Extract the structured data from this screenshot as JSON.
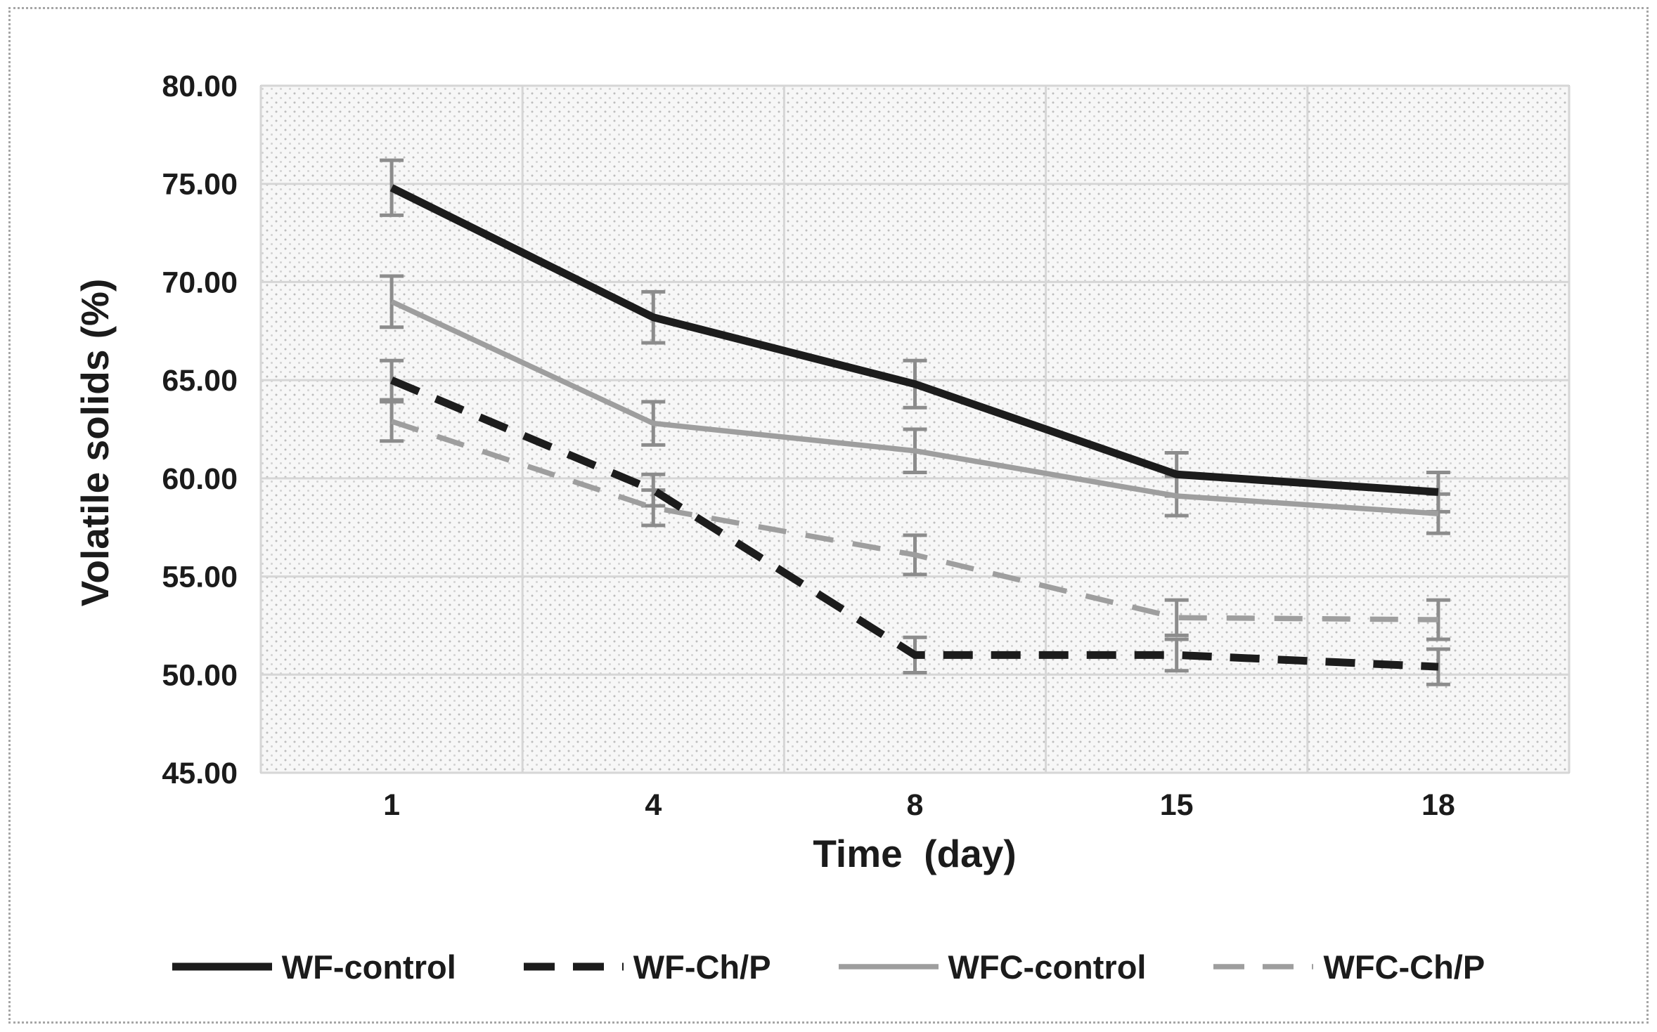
{
  "figure": {
    "frame_color": "#a6a6a6"
  },
  "chart_data": {
    "type": "line",
    "title": "",
    "xlabel": "Time  (day)",
    "ylabel": "Volatile solids (%)",
    "categories": [
      "1",
      "4",
      "8",
      "15",
      "18"
    ],
    "ylim": [
      45,
      80
    ],
    "ytick_step": 5,
    "yticks": [
      "80.00",
      "75.00",
      "70.00",
      "65.00",
      "60.00",
      "55.00",
      "50.00",
      "45.00"
    ],
    "grid": true,
    "legend_position": "bottom",
    "error_bars": true,
    "series": [
      {
        "name": "WF-control",
        "color": "#1c1c1c",
        "style": "solid",
        "values": [
          74.8,
          68.2,
          64.8,
          60.2,
          59.3
        ],
        "errors": [
          1.4,
          1.3,
          1.2,
          1.1,
          1.0
        ]
      },
      {
        "name": "WF-Ch/P",
        "color": "#1c1c1c",
        "style": "dashed",
        "values": [
          65.0,
          59.4,
          51.0,
          51.0,
          50.4
        ],
        "errors": [
          1.0,
          0.8,
          0.9,
          0.8,
          0.9
        ]
      },
      {
        "name": "WFC-control",
        "color": "#9e9e9e",
        "style": "solid",
        "values": [
          69.0,
          62.8,
          61.4,
          59.1,
          58.2
        ],
        "errors": [
          1.3,
          1.1,
          1.1,
          1.0,
          1.0
        ]
      },
      {
        "name": "WFC-Ch/P",
        "color": "#9e9e9e",
        "style": "dashed",
        "values": [
          62.9,
          58.5,
          56.1,
          52.9,
          52.8
        ],
        "errors": [
          1.0,
          0.9,
          1.0,
          0.9,
          1.0
        ]
      }
    ],
    "colors": {
      "error_bar": "#8c8c8c",
      "gridline": "#d6d6d6",
      "plot_border": "#c9c9c9",
      "text": "#1b1b1b"
    }
  }
}
